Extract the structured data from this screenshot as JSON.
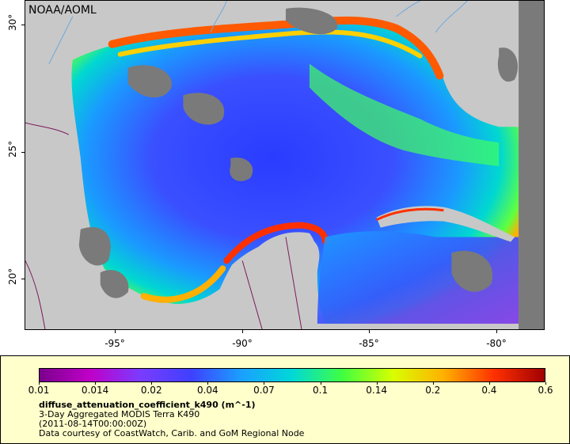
{
  "map": {
    "source_label": "NOAA/AOML",
    "lat_labels": [
      "30°",
      "25°",
      "20°"
    ],
    "lon_labels": [
      "-95°",
      "-90°",
      "-85°",
      "-80°"
    ],
    "colors": {
      "land": "#c8c8c8",
      "cloud_mask": "#7a7a7a",
      "rivers": "#6fa8dc",
      "borders": "#7a1a5a"
    }
  },
  "legend": {
    "tick_labels": [
      "0.01",
      "0.014",
      "0.02",
      "0.04",
      "0.07",
      "0.1",
      "0.14",
      "0.2",
      "0.4",
      "0.6"
    ],
    "variable": "diffuse_attenuation_coefficient_k490 (m^-1)",
    "description": "3-Day Aggregated MODIS Terra K490",
    "date": "(2011-08-14T00:00:00Z)",
    "credit": "Data courtesy of CoastWatch, Carib. and GoM Regional Node"
  }
}
